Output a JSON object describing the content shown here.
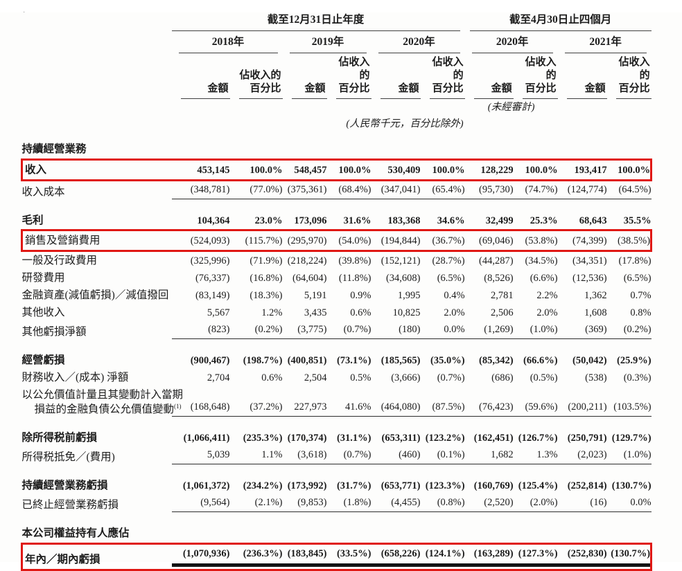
{
  "accent": {
    "highlight_red": "#e01713",
    "text": "#1c1c1c"
  },
  "table": {
    "header": {
      "scope_annual": "截至12月31日止年度",
      "scope_four_months": "截至4月30日止四個月",
      "years": [
        "2018年",
        "2019年",
        "2020年",
        "2020年",
        "2021年"
      ],
      "amount_label": "金額",
      "pct_label_line1": "佔收入的",
      "pct_label_line2": "百分比",
      "unaudited_note": "(未經審計)",
      "units_note": "(人民幣千元，百分比除外)"
    },
    "rows": [
      {
        "type": "section",
        "label": "持續經營業務"
      },
      {
        "type": "data",
        "label": "收入",
        "bold": true,
        "redbox": true,
        "values": [
          "453,145",
          "100.0%",
          "548,457",
          "100.0%",
          "530,409",
          "100.0%",
          "128,229",
          "100.0%",
          "193,417",
          "100.0%"
        ]
      },
      {
        "type": "data",
        "label": "收入成本",
        "rule": "single",
        "values": [
          "(348,781)",
          "(77.0%)",
          "(375,361)",
          "(68.4%)",
          "(347,041)",
          "(65.4%)",
          "(95,730)",
          "(74.7%)",
          "(124,774)",
          "(64.5%)"
        ]
      },
      {
        "type": "gap"
      },
      {
        "type": "data",
        "label": "毛利",
        "bold": true,
        "values": [
          "104,364",
          "23.0%",
          "173,096",
          "31.6%",
          "183,368",
          "34.6%",
          "32,499",
          "25.3%",
          "68,643",
          "35.5%"
        ]
      },
      {
        "type": "data",
        "label": "銷售及營銷費用",
        "redbox": true,
        "values": [
          "(524,093)",
          "(115.7%)",
          "(295,970)",
          "(54.0%)",
          "(194,844)",
          "(36.7%)",
          "(69,046)",
          "(53.8%)",
          "(74,399)",
          "(38.5%)"
        ]
      },
      {
        "type": "data",
        "label": "一般及行政費用",
        "values": [
          "(325,996)",
          "(71.9%)",
          "(218,224)",
          "(39.8%)",
          "(152,121)",
          "(28.7%)",
          "(44,287)",
          "(34.5%)",
          "(34,351)",
          "(17.8%)"
        ]
      },
      {
        "type": "data",
        "label": "研發費用",
        "values": [
          "(76,337)",
          "(16.8%)",
          "(64,604)",
          "(11.8%)",
          "(34,608)",
          "(6.5%)",
          "(8,526)",
          "(6.6%)",
          "(12,536)",
          "(6.5%)"
        ]
      },
      {
        "type": "data",
        "label": "金融資產(減值虧損)／減值撥回",
        "values": [
          "(83,149)",
          "(18.3%)",
          "5,191",
          "0.9%",
          "1,995",
          "0.4%",
          "2,781",
          "2.2%",
          "1,362",
          "0.7%"
        ]
      },
      {
        "type": "data",
        "label": "其他收入",
        "values": [
          "5,567",
          "1.2%",
          "3,435",
          "0.6%",
          "10,825",
          "2.0%",
          "2,506",
          "2.0%",
          "1,608",
          "0.8%"
        ]
      },
      {
        "type": "data",
        "label": "其他虧損淨額",
        "rule": "single",
        "values": [
          "(823)",
          "(0.2%)",
          "(3,775)",
          "(0.7%)",
          "(180)",
          "0.0%",
          "(1,269)",
          "(1.0%)",
          "(369)",
          "(0.2%)"
        ]
      },
      {
        "type": "gap"
      },
      {
        "type": "data",
        "label": "經營虧損",
        "bold": true,
        "values": [
          "(900,467)",
          "(198.7%)",
          "(400,851)",
          "(73.1%)",
          "(185,565)",
          "(35.0%)",
          "(85,342)",
          "(66.6%)",
          "(50,042)",
          "(25.9%)"
        ]
      },
      {
        "type": "data",
        "label": "財務收入／(成本) 淨額",
        "values": [
          "2,704",
          "0.6%",
          "2,504",
          "0.5%",
          "(3,666)",
          "(0.7%)",
          "(686)",
          "(0.5%)",
          "(538)",
          "(0.3%)"
        ]
      },
      {
        "type": "data",
        "label": "以公允價值計量且其變動計入當期",
        "label2": "損益的金融負債公允價值變動",
        "sup": "(1)",
        "rule": "single",
        "values": [
          "(168,648)",
          "(37.2%)",
          "227,973",
          "41.6%",
          "(464,080)",
          "(87.5%)",
          "(76,423)",
          "(59.6%)",
          "(200,211)",
          "(103.5%)"
        ]
      },
      {
        "type": "gap"
      },
      {
        "type": "data",
        "label": "除所得税前虧損",
        "bold": true,
        "values": [
          "(1,066,411)",
          "(235.3%)",
          "(170,374)",
          "(31.1%)",
          "(653,311)",
          "(123.2%)",
          "(162,451)",
          "(126.7%)",
          "(250,791)",
          "(129.7%)"
        ]
      },
      {
        "type": "data",
        "label": "所得税抵免／(費用)",
        "rule": "single",
        "values": [
          "5,039",
          "1.1%",
          "(3,618)",
          "(0.7%)",
          "(460)",
          "(0.1%)",
          "1,682",
          "1.3%",
          "(2,023)",
          "(1.0%)"
        ]
      },
      {
        "type": "gap"
      },
      {
        "type": "data",
        "label": "持續經營業務虧損",
        "bold": true,
        "values": [
          "(1,061,372)",
          "(234.2%)",
          "(173,992)",
          "(31.7%)",
          "(653,771)",
          "(123.3%)",
          "(160,769)",
          "(125.4%)",
          "(252,814)",
          "(130.7%)"
        ]
      },
      {
        "type": "data",
        "label": "已終止經營業務虧損",
        "rule": "single",
        "values": [
          "(9,564)",
          "(2.1%)",
          "(9,853)",
          "(1.8%)",
          "(4,455)",
          "(0.8%)",
          "(2,520)",
          "(2.0%)",
          "(16)",
          "0.0%"
        ]
      },
      {
        "type": "gap"
      },
      {
        "type": "section",
        "label": "本公司權益持有人應佔"
      },
      {
        "type": "data",
        "label": "年內／期內虧損",
        "bold": true,
        "indent": true,
        "redbox": true,
        "rule": "double",
        "values": [
          "(1,070,936)",
          "(236.3%)",
          "(183,845)",
          "(33.5%)",
          "(658,226)",
          "(124.1%)",
          "(163,289)",
          "(127.3%)",
          "(252,830)",
          "(130.7%)"
        ]
      }
    ]
  }
}
